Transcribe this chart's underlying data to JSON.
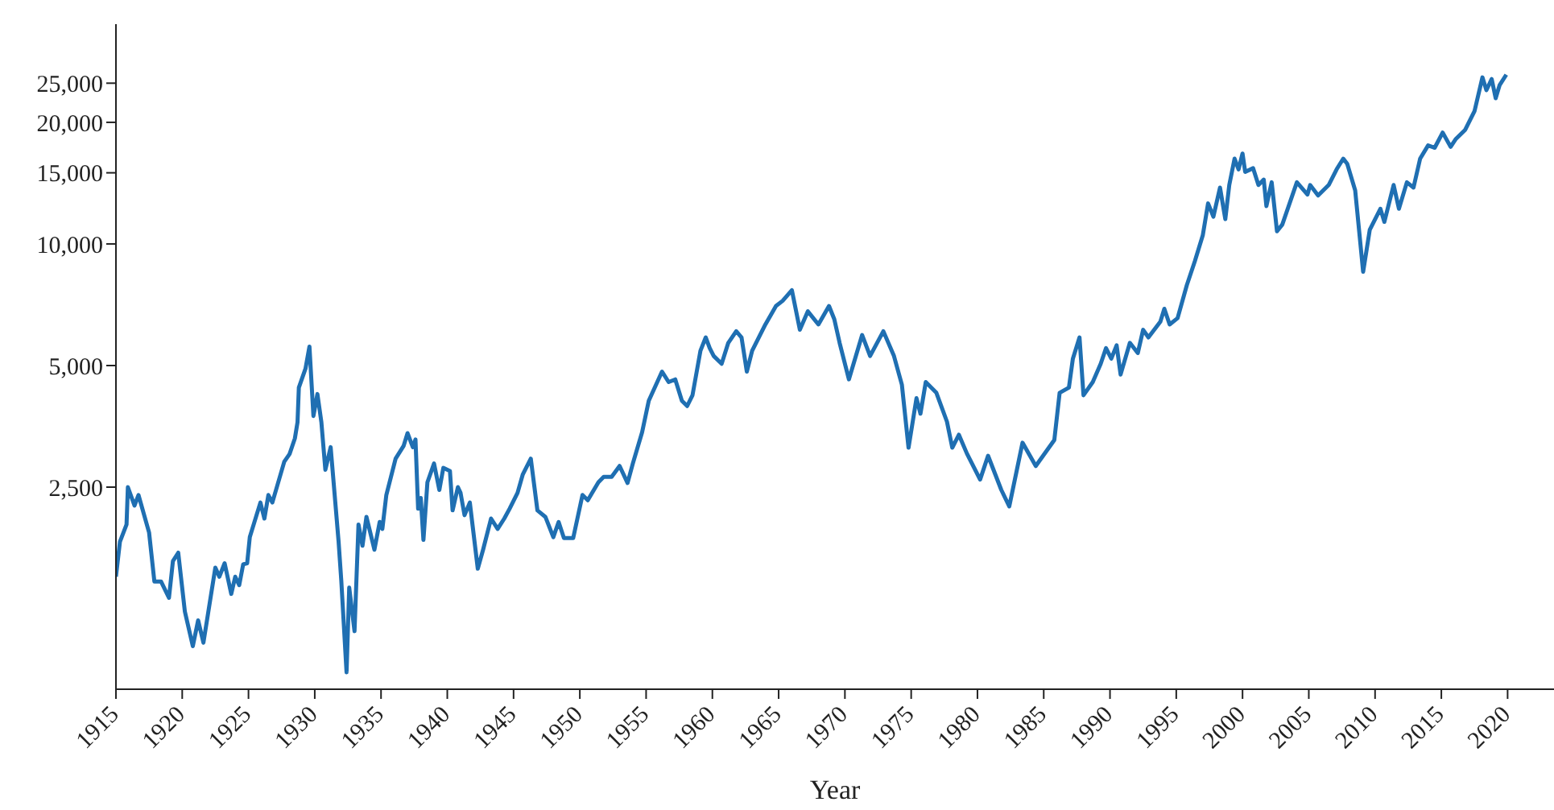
{
  "chart_data": {
    "type": "line",
    "xlabel": "Year",
    "log": "y",
    "grid": false,
    "legend": false,
    "marker": "none",
    "line_style": "solid",
    "xlim": [
      1915,
      2023.5
    ],
    "xticks": [
      1915,
      1920,
      1925,
      1930,
      1935,
      1940,
      1945,
      1950,
      1955,
      1960,
      1965,
      1970,
      1975,
      1980,
      1985,
      1990,
      1995,
      2000,
      2005,
      2010,
      2015,
      2020
    ],
    "ylim": [
      790,
      35000
    ],
    "yticks": [
      {
        "value": 2500,
        "label": "2,500"
      },
      {
        "value": 5000,
        "label": "5,000"
      },
      {
        "value": 10000,
        "label": "10,000"
      },
      {
        "value": 15000,
        "label": "15,000"
      },
      {
        "value": 20000,
        "label": "20,000"
      },
      {
        "value": 25000,
        "label": "25,000"
      }
    ],
    "x": [
      1915,
      1915.3,
      1915.8,
      1915.9,
      1916.4,
      1916.7,
      1917.5,
      1917.9,
      1918.4,
      1919,
      1919.3,
      1919.7,
      1920.2,
      1920.8,
      1921.2,
      1921.6,
      1922.5,
      1922.8,
      1923.2,
      1923.7,
      1924,
      1924.3,
      1924.6,
      1924.9,
      1925.1,
      1925.9,
      1926.2,
      1926.5,
      1926.8,
      1927.7,
      1928.1,
      1928.5,
      1928.7,
      1928.8,
      1929.3,
      1929.6,
      1929.9,
      1930.2,
      1930.5,
      1930.8,
      1931.2,
      1931.8,
      1932,
      1932.4,
      1932.6,
      1933,
      1933.3,
      1933.6,
      1933.9,
      1934.5,
      1934.9,
      1935.1,
      1935.4,
      1936.1,
      1936.7,
      1937,
      1937.4,
      1937.6,
      1937.8,
      1938,
      1938.2,
      1938.5,
      1939,
      1939.4,
      1939.7,
      1940.2,
      1940.4,
      1940.8,
      1941,
      1941.3,
      1941.7,
      1942.3,
      1942.7,
      1943.3,
      1943.8,
      1944.3,
      1944.7,
      1945.3,
      1945.7,
      1946.3,
      1946.8,
      1947.4,
      1948,
      1948.4,
      1948.8,
      1949.5,
      1950.2,
      1950.6,
      1951.4,
      1951.8,
      1952.4,
      1953,
      1953.6,
      1954,
      1954.7,
      1955.2,
      1956.2,
      1956.7,
      1957.2,
      1957.7,
      1958.1,
      1958.5,
      1959.1,
      1959.5,
      1959.8,
      1960.1,
      1960.7,
      1961.2,
      1961.8,
      1962.2,
      1962.6,
      1963,
      1964,
      1964.8,
      1965.3,
      1966,
      1966.6,
      1967.2,
      1968,
      1968.8,
      1969.2,
      1969.6,
      1970.3,
      1971.3,
      1971.9,
      1972.9,
      1973.7,
      1974.3,
      1974.8,
      1975.4,
      1975.7,
      1976.1,
      1976.9,
      1977.7,
      1978.1,
      1978.6,
      1979.2,
      1980.2,
      1980.8,
      1981.8,
      1982.4,
      1983.4,
      1984.4,
      1985.8,
      1986.2,
      1986.9,
      1987.2,
      1987.7,
      1988,
      1988.7,
      1989.3,
      1989.7,
      1990.1,
      1990.5,
      1990.8,
      1991.5,
      1992.1,
      1992.5,
      1992.9,
      1993.8,
      1994.1,
      1994.5,
      1995.1,
      1995.8,
      1996.4,
      1997,
      1997.4,
      1997.8,
      1998.3,
      1998.7,
      1999,
      1999.4,
      1999.7,
      2000,
      2000.2,
      2000.8,
      2001.2,
      2001.6,
      2001.8,
      2002.2,
      2002.6,
      2003,
      2004.1,
      2004.9,
      2005.1,
      2005.7,
      2006.5,
      2007.1,
      2007.6,
      2007.9,
      2008.5,
      2009.1,
      2009.6,
      2010.4,
      2010.7,
      2011.4,
      2011.8,
      2012.4,
      2012.9,
      2013.4,
      2014,
      2014.5,
      2015.1,
      2015.7,
      2016.1,
      2016.8,
      2017.5,
      2018.1,
      2018.4,
      2018.8,
      2019.1,
      2019.4,
      2019.9
    ],
    "series": [
      {
        "color": "#1f6fb2",
        "values": [
          1500,
          1830,
          2020,
          2500,
          2250,
          2390,
          1930,
          1460,
          1460,
          1330,
          1640,
          1720,
          1230,
          1010,
          1170,
          1030,
          1580,
          1500,
          1620,
          1360,
          1500,
          1430,
          1610,
          1620,
          1880,
          2290,
          2090,
          2390,
          2290,
          2890,
          3020,
          3300,
          3620,
          4410,
          4910,
          5570,
          3750,
          4250,
          3620,
          2760,
          3140,
          1830,
          1470,
          870,
          1410,
          1100,
          2020,
          1790,
          2110,
          1750,
          2050,
          1970,
          2390,
          2940,
          3160,
          3400,
          3140,
          3280,
          2210,
          2350,
          1850,
          2570,
          2860,
          2460,
          2790,
          2740,
          2190,
          2500,
          2420,
          2130,
          2290,
          1570,
          1750,
          2090,
          1970,
          2090,
          2210,
          2420,
          2690,
          2940,
          2190,
          2110,
          1880,
          2050,
          1870,
          1870,
          2390,
          2320,
          2570,
          2650,
          2650,
          2820,
          2560,
          2860,
          3420,
          4090,
          4830,
          4550,
          4620,
          4090,
          3970,
          4220,
          5440,
          5870,
          5520,
          5280,
          5050,
          5690,
          6080,
          5870,
          4830,
          5440,
          6320,
          7020,
          7230,
          7680,
          6130,
          6810,
          6320,
          7020,
          6510,
          5690,
          4620,
          5950,
          5280,
          6080,
          5280,
          4480,
          3130,
          4150,
          3800,
          4550,
          4280,
          3630,
          3130,
          3370,
          3030,
          2610,
          2990,
          2460,
          2240,
          3220,
          2820,
          3270,
          4280,
          4410,
          5200,
          5870,
          4220,
          4550,
          5050,
          5520,
          5200,
          5610,
          4750,
          5690,
          5370,
          6130,
          5870,
          6420,
          6910,
          6320,
          6550,
          7910,
          9060,
          10500,
          12600,
          11680,
          13790,
          11520,
          13990,
          16260,
          15300,
          16740,
          15080,
          15400,
          13990,
          14430,
          12410,
          14210,
          10750,
          11170,
          14210,
          13250,
          13990,
          13180,
          13990,
          15300,
          16260,
          15780,
          13570,
          8530,
          10840,
          12220,
          11340,
          13990,
          12220,
          14210,
          13790,
          16260,
          17530,
          17300,
          18870,
          17390,
          18200,
          19170,
          21300,
          25840,
          24020,
          25600,
          22950,
          24740,
          26240
        ]
      }
    ]
  }
}
